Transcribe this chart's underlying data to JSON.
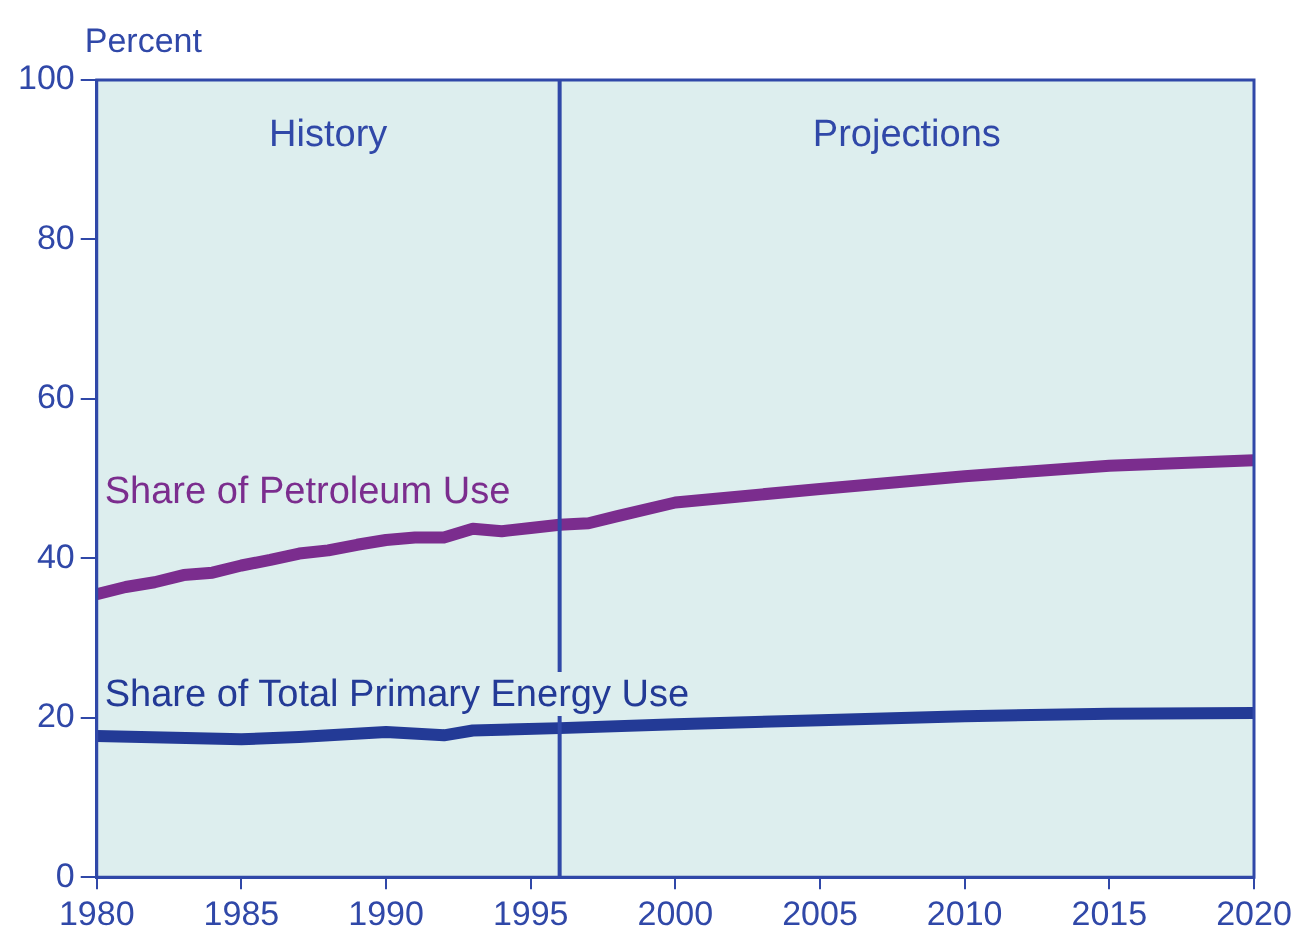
{
  "chart_data": {
    "type": "line",
    "ylabel": "Percent",
    "x": [
      1980,
      1981,
      1982,
      1983,
      1984,
      1985,
      1986,
      1987,
      1988,
      1989,
      1990,
      1991,
      1992,
      1993,
      1994,
      1995,
      1996,
      1997,
      1998,
      2000,
      2005,
      2010,
      2015,
      2020
    ],
    "series": [
      {
        "name": "Share of Petroleum Use",
        "color": "#7b2d8e",
        "values": [
          35.5,
          36.4,
          37.0,
          37.9,
          38.2,
          39.1,
          39.8,
          40.6,
          41.0,
          41.7,
          42.3,
          42.6,
          42.6,
          43.7,
          43.4,
          43.8,
          44.2,
          44.4,
          45.3,
          47.0,
          48.7,
          50.3,
          51.6,
          52.3
        ]
      },
      {
        "name": "Share of Total Primary Energy Use",
        "color": "#233a96",
        "x": [
          1980,
          1985,
          1987,
          1990,
          1992,
          1993,
          1996,
          2000,
          2005,
          2010,
          2015,
          2020
        ],
        "values": [
          17.7,
          17.3,
          17.6,
          18.2,
          17.8,
          18.4,
          18.7,
          19.2,
          19.7,
          20.2,
          20.5,
          20.6
        ]
      }
    ],
    "xlim": [
      1980,
      2020
    ],
    "xticks": [
      1980,
      1985,
      1990,
      1995,
      2000,
      2005,
      2010,
      2015,
      2020
    ],
    "ylim": [
      0,
      100
    ],
    "yticks": [
      0,
      20,
      40,
      60,
      80,
      100
    ],
    "ref_lines": [
      {
        "axis": "x",
        "value": 1996,
        "color": "#3048a8"
      }
    ],
    "annotations": [
      "History",
      "Projections"
    ],
    "grid": false,
    "legend": false,
    "marker": "none",
    "line_style": "solid"
  }
}
